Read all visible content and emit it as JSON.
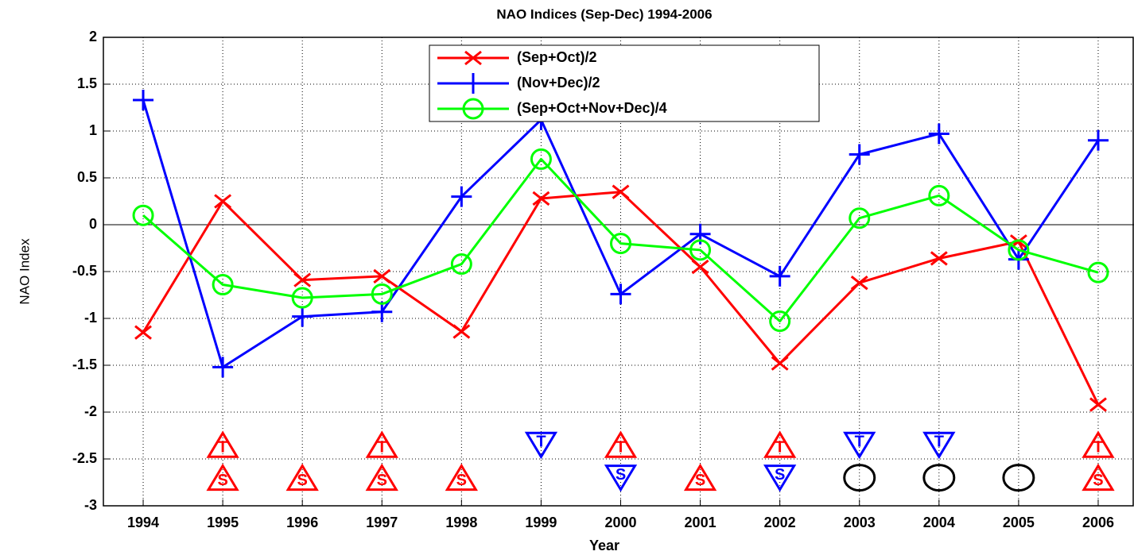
{
  "chart_data": {
    "type": "line",
    "title": "NAO Indices (Sep-Dec) 1994-2006",
    "xlabel": "Year",
    "ylabel": "NAO Index",
    "x": [
      1994,
      1995,
      1996,
      1997,
      1998,
      1999,
      2000,
      2001,
      2002,
      2003,
      2004,
      2005,
      2006
    ],
    "series": [
      {
        "name": "(Sep+Oct)/2",
        "color": "#ff0000",
        "marker": "x",
        "values": [
          -1.15,
          0.25,
          -0.59,
          -0.55,
          -1.14,
          0.28,
          0.35,
          -0.45,
          -1.48,
          -0.62,
          -0.36,
          -0.18,
          -1.92
        ]
      },
      {
        "name": "(Nov+Dec)/2",
        "color": "#0000ff",
        "marker": "plus",
        "values": [
          1.33,
          -1.52,
          -0.98,
          -0.93,
          0.3,
          1.12,
          -0.74,
          -0.1,
          -0.55,
          0.75,
          0.97,
          -0.37,
          0.9
        ]
      },
      {
        "name": "(Sep+Oct+Nov+Dec)/4",
        "color": "#00ff00",
        "marker": "circle",
        "values": [
          0.1,
          -0.64,
          -0.78,
          -0.74,
          -0.42,
          0.7,
          -0.2,
          -0.27,
          -1.03,
          0.07,
          0.31,
          -0.27,
          -0.51
        ]
      }
    ],
    "annotations": [
      {
        "x": 1995,
        "y": -2.35,
        "label": "T",
        "shape": "up",
        "color": "#ff0000"
      },
      {
        "x": 1997,
        "y": -2.35,
        "label": "T",
        "shape": "up",
        "color": "#ff0000"
      },
      {
        "x": 1999,
        "y": -2.35,
        "label": "T",
        "shape": "down",
        "color": "#0000ff"
      },
      {
        "x": 2000,
        "y": -2.35,
        "label": "T",
        "shape": "up",
        "color": "#ff0000"
      },
      {
        "x": 2002,
        "y": -2.35,
        "label": "T",
        "shape": "up",
        "color": "#ff0000"
      },
      {
        "x": 2003,
        "y": -2.35,
        "label": "T",
        "shape": "down",
        "color": "#0000ff"
      },
      {
        "x": 2004,
        "y": -2.35,
        "label": "T",
        "shape": "down",
        "color": "#0000ff"
      },
      {
        "x": 2006,
        "y": -2.35,
        "label": "T",
        "shape": "up",
        "color": "#ff0000"
      },
      {
        "x": 1995,
        "y": -2.7,
        "label": "S",
        "shape": "up",
        "color": "#ff0000"
      },
      {
        "x": 1996,
        "y": -2.7,
        "label": "S",
        "shape": "up",
        "color": "#ff0000"
      },
      {
        "x": 1997,
        "y": -2.7,
        "label": "S",
        "shape": "up",
        "color": "#ff0000"
      },
      {
        "x": 1998,
        "y": -2.7,
        "label": "S",
        "shape": "up",
        "color": "#ff0000"
      },
      {
        "x": 2000,
        "y": -2.7,
        "label": "S",
        "shape": "down",
        "color": "#0000ff"
      },
      {
        "x": 2001,
        "y": -2.7,
        "label": "S",
        "shape": "up",
        "color": "#ff0000"
      },
      {
        "x": 2002,
        "y": -2.7,
        "label": "S",
        "shape": "down",
        "color": "#0000ff"
      },
      {
        "x": 2003,
        "y": -2.7,
        "shape": "circle",
        "color": "#000000"
      },
      {
        "x": 2004,
        "y": -2.7,
        "shape": "circle",
        "color": "#000000"
      },
      {
        "x": 2005,
        "y": -2.7,
        "shape": "circle",
        "color": "#000000"
      },
      {
        "x": 2006,
        "y": -2.7,
        "label": "S",
        "shape": "up",
        "color": "#ff0000"
      }
    ],
    "xlim": [
      1993.5,
      2006.45
    ],
    "xticks": [
      1994,
      1995,
      1996,
      1997,
      1998,
      1999,
      2000,
      2001,
      2002,
      2003,
      2004,
      2005,
      2006
    ],
    "ylim": [
      -3,
      2
    ],
    "yticks": [
      -3,
      -2.5,
      -2,
      -1.5,
      -1,
      -0.5,
      0,
      0.5,
      1,
      1.5,
      2
    ],
    "grid": true,
    "legend": "top"
  }
}
